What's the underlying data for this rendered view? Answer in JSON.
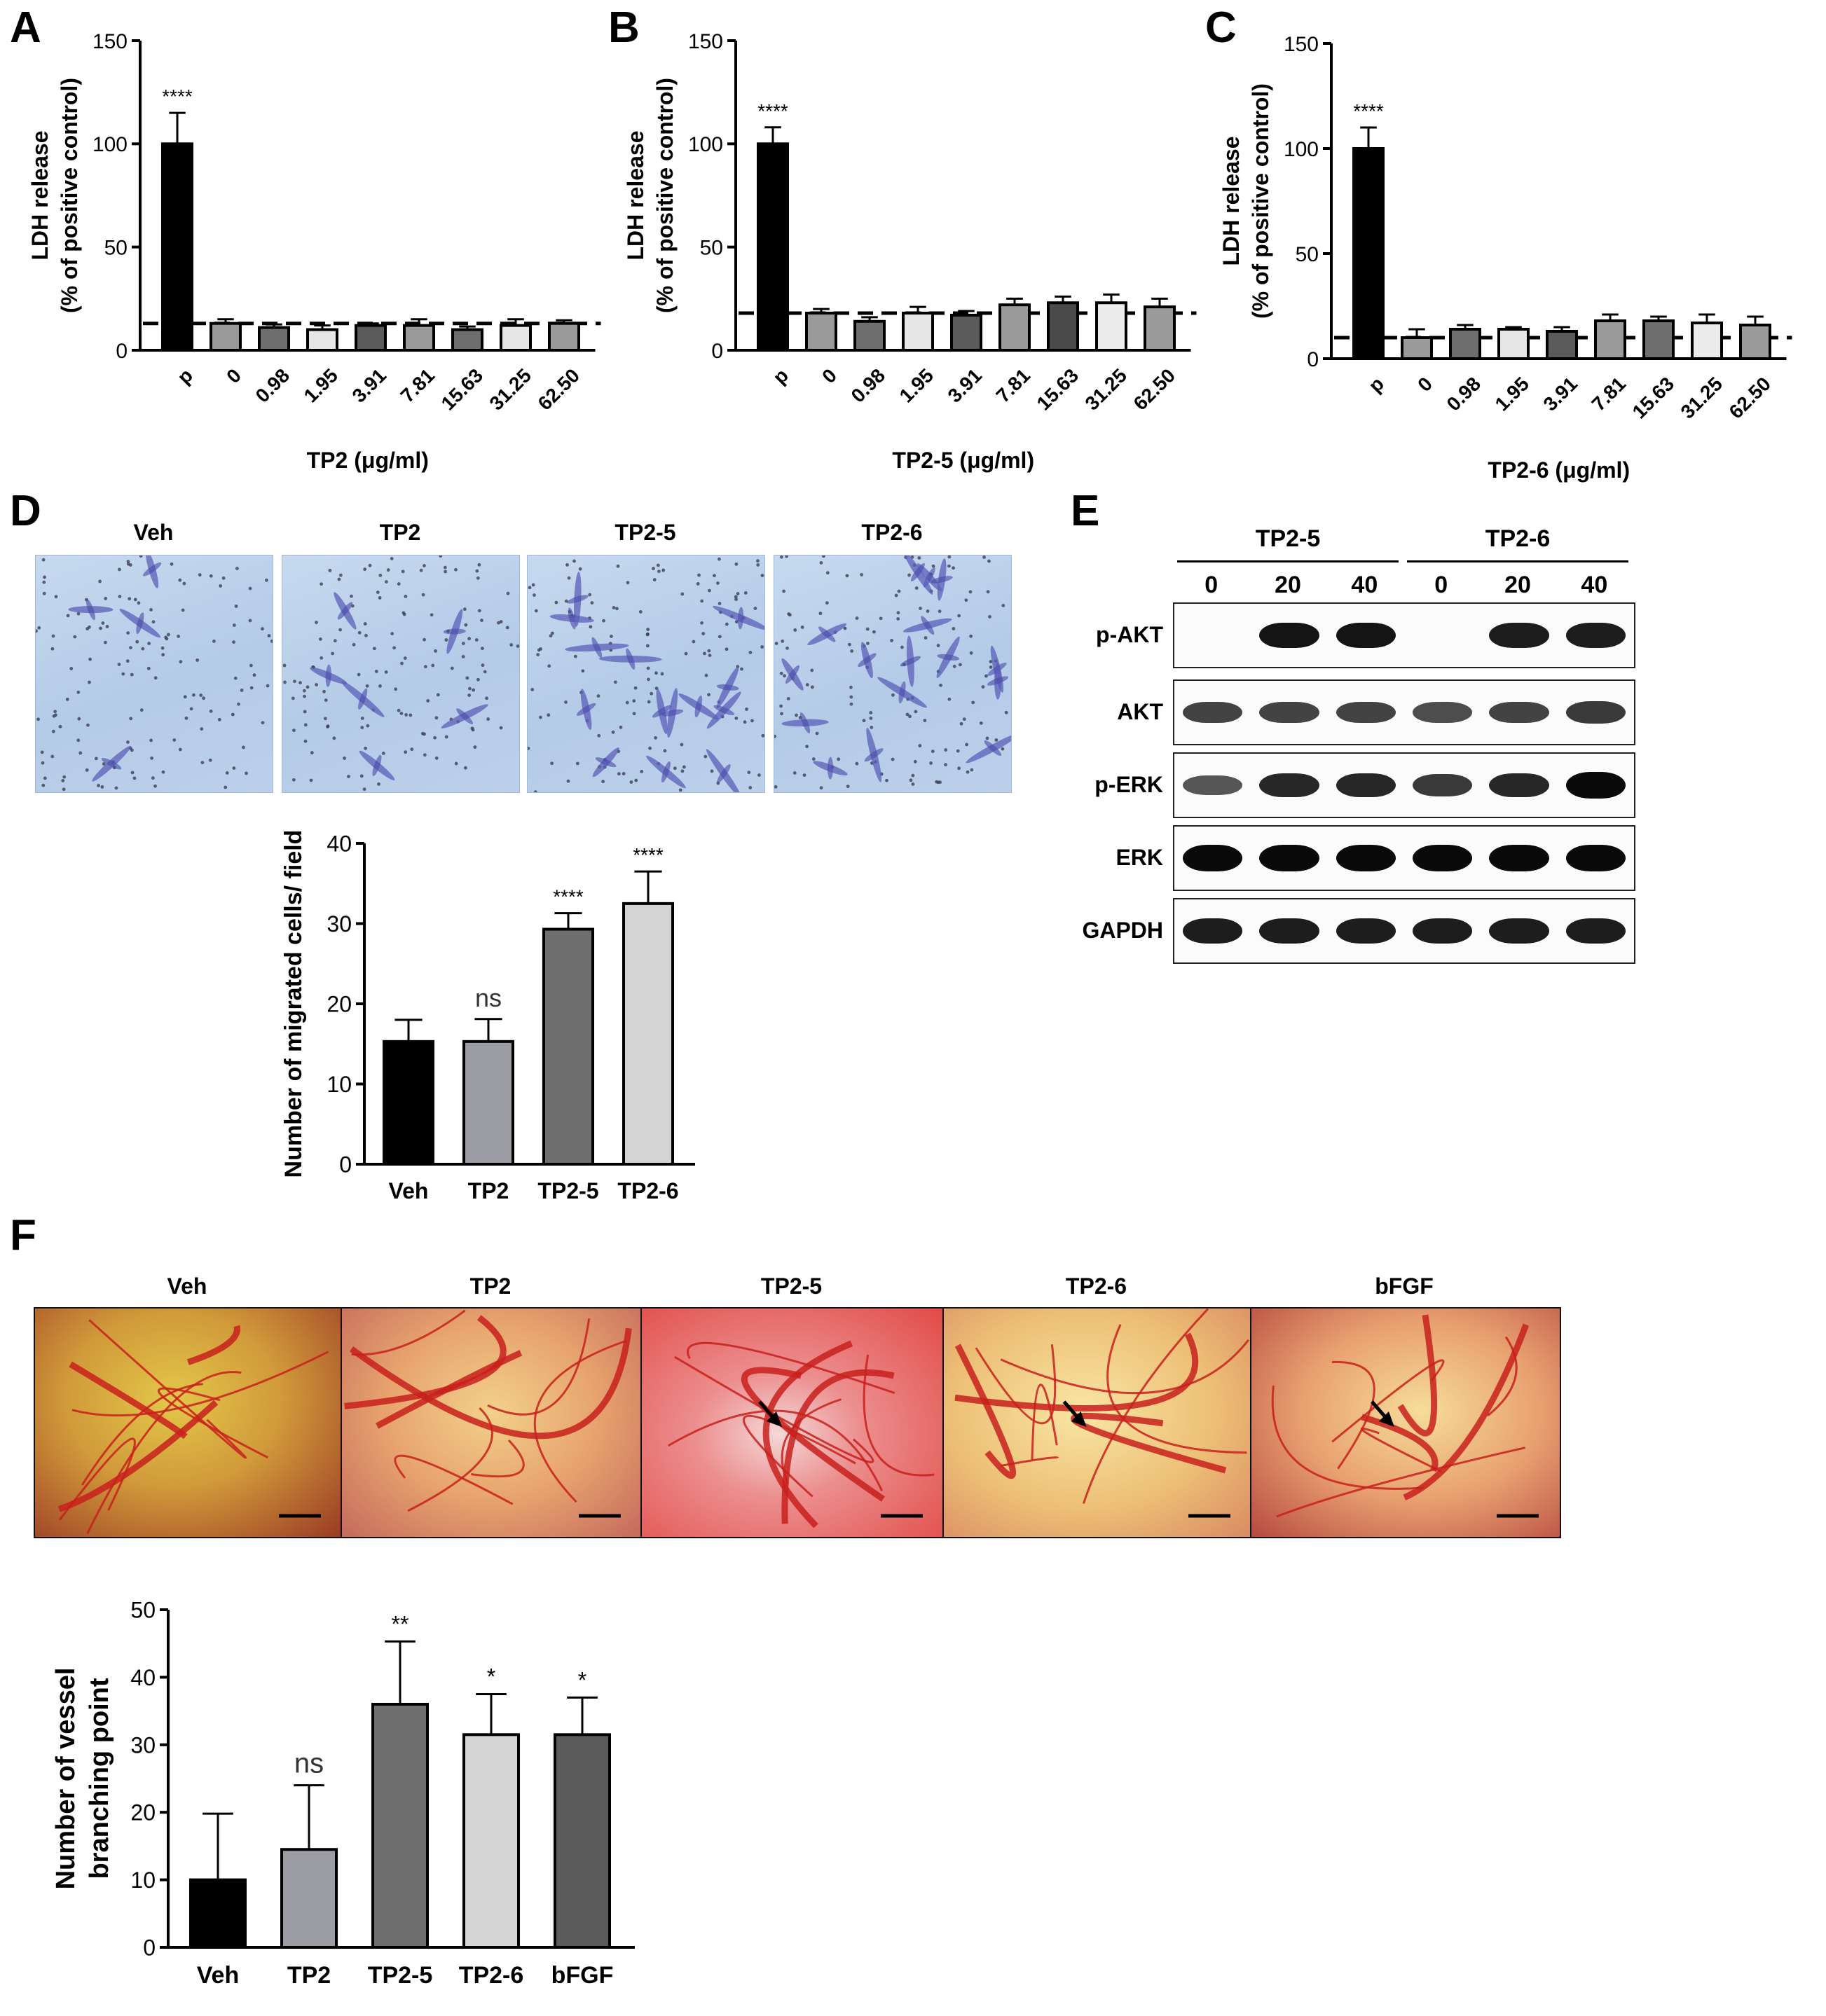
{
  "panels": {
    "A": "A",
    "B": "B",
    "C": "C",
    "D": "D",
    "E": "E",
    "F": "F"
  },
  "charts": {
    "A": {
      "type": "bar",
      "xlabel": "TP2 (μg/ml)",
      "ylabel_line1": "LDH release",
      "ylabel_line2": "(% of positive control)",
      "categories": [
        "p",
        "0",
        "0.98",
        "1.95",
        "3.91",
        "7.81",
        "15.63",
        "31.25",
        "62.50"
      ],
      "values": [
        100,
        13,
        11,
        10,
        12,
        12,
        10,
        12,
        13
      ],
      "errors": [
        15,
        2,
        1.5,
        2,
        1,
        3,
        1.5,
        3,
        1.5
      ],
      "colors": [
        "#000000",
        "#9a9a9a",
        "#6e6e6e",
        "#e6e6e6",
        "#5a5a5a",
        "#9a9a9a",
        "#6e6e6e",
        "#e6e6e6",
        "#9a9a9a"
      ],
      "significance": [
        "****",
        "",
        "",
        "",
        "",
        "",
        "",
        "",
        ""
      ],
      "baseline": 13,
      "ylim": [
        0,
        150
      ],
      "yticks": [
        "0",
        "50",
        "100",
        "150"
      ]
    },
    "B": {
      "type": "bar",
      "xlabel": "TP2-5 (μg/ml)",
      "ylabel_line1": "LDH release",
      "ylabel_line2": "(% of positive control)",
      "categories": [
        "p",
        "0",
        "0.98",
        "1.95",
        "3.91",
        "7.81",
        "15.63",
        "31.25",
        "62.50"
      ],
      "values": [
        100,
        18,
        14,
        18,
        17,
        22,
        23,
        23,
        21
      ],
      "errors": [
        8,
        2,
        2,
        3,
        2,
        3,
        3,
        4,
        4
      ],
      "colors": [
        "#000000",
        "#9a9a9a",
        "#6e6e6e",
        "#e6e6e6",
        "#5a5a5a",
        "#9a9a9a",
        "#4a4a4a",
        "#ececec",
        "#9a9a9a"
      ],
      "significance": [
        "****",
        "",
        "",
        "",
        "",
        "",
        "",
        "",
        ""
      ],
      "baseline": 18,
      "ylim": [
        0,
        150
      ],
      "yticks": [
        "0",
        "50",
        "100",
        "150"
      ]
    },
    "C": {
      "type": "bar",
      "xlabel": "TP2-6 (μg/ml)",
      "ylabel_line1": "LDH release",
      "ylabel_line2": "(% of positive control)",
      "categories": [
        "p",
        "0",
        "0.98",
        "1.95",
        "3.91",
        "7.81",
        "15.63",
        "31.25",
        "62.50"
      ],
      "values": [
        100,
        10,
        14,
        14,
        13,
        18,
        18,
        17,
        16
      ],
      "errors": [
        10,
        4,
        2,
        1,
        2,
        3,
        2,
        4,
        4
      ],
      "colors": [
        "#000000",
        "#9a9a9a",
        "#6e6e6e",
        "#e6e6e6",
        "#5a5a5a",
        "#9a9a9a",
        "#6e6e6e",
        "#ececec",
        "#9a9a9a"
      ],
      "significance": [
        "****",
        "",
        "",
        "",
        "",
        "",
        "",
        "",
        ""
      ],
      "baseline": 10,
      "ylim": [
        0,
        150
      ],
      "yticks": [
        "0",
        "50",
        "100",
        "150"
      ]
    },
    "D": {
      "type": "bar",
      "xlabel": "",
      "ylabel_line1": "Number of migrated cells/ field",
      "ylabel_line2": "",
      "categories": [
        "Veh",
        "TP2",
        "TP2-5",
        "TP2-6"
      ],
      "values": [
        15.3,
        15.3,
        29.3,
        32.5
      ],
      "errors": [
        2.7,
        2.8,
        2.0,
        4.0
      ],
      "colors": [
        "#000000",
        "#9c9ca4",
        "#6e6e6e",
        "#d4d4d4"
      ],
      "significance": [
        "",
        "ns",
        "****",
        "****"
      ],
      "ylim": [
        0,
        40
      ],
      "yticks": [
        "0",
        "10",
        "20",
        "30",
        "40"
      ]
    },
    "F": {
      "type": "bar",
      "xlabel": "",
      "ylabel_line1": "Number of vessel",
      "ylabel_line2": "branching point",
      "categories": [
        "Veh",
        "TP2",
        "TP2-5",
        "TP2-6",
        "bFGF"
      ],
      "values": [
        10,
        14.5,
        36,
        31.5,
        31.5
      ],
      "errors": [
        9.8,
        9.5,
        9.3,
        6,
        5.5
      ],
      "colors": [
        "#000000",
        "#9c9ca4",
        "#6e6e6e",
        "#d4d4d4",
        "#5a5a5a"
      ],
      "significance": [
        "",
        "ns",
        "**",
        "*",
        "*"
      ],
      "ylim": [
        0,
        50
      ],
      "yticks": [
        "0",
        "10",
        "20",
        "30",
        "40",
        "50"
      ]
    }
  },
  "micrographs": {
    "labels": [
      "Veh",
      "TP2",
      "TP2-5",
      "TP2-6"
    ],
    "cell_density": [
      4,
      6,
      14,
      16
    ]
  },
  "western": {
    "groups": [
      "TP2-5",
      "TP2-6"
    ],
    "lanes": [
      "0",
      "20",
      "40",
      "0",
      "20",
      "40"
    ],
    "rows": [
      {
        "label": "p-AKT",
        "intensity": [
          0,
          0.95,
          0.95,
          0,
          0.9,
          0.9
        ]
      },
      {
        "label": "AKT",
        "intensity": [
          0.7,
          0.7,
          0.7,
          0.65,
          0.7,
          0.75
        ]
      },
      {
        "label": "p-ERK",
        "intensity": [
          0.6,
          0.85,
          0.85,
          0.75,
          0.85,
          1.0
        ]
      },
      {
        "label": "ERK",
        "intensity": [
          1.0,
          1.0,
          1.0,
          1.0,
          1.0,
          1.0
        ]
      },
      {
        "label": "GAPDH",
        "intensity": [
          0.9,
          0.9,
          0.9,
          0.9,
          0.9,
          0.9
        ]
      }
    ]
  },
  "cam": {
    "labels": [
      "Veh",
      "TP2",
      "TP2-5",
      "TP2-6",
      "bFGF"
    ],
    "arrows": [
      false,
      false,
      true,
      true,
      true
    ]
  },
  "colors": {
    "veh": "#000000",
    "tp2": "#9c9ca4",
    "tp25": "#6e6e6e",
    "tp26": "#d4d4d4",
    "bfgf": "#5a5a5a"
  }
}
